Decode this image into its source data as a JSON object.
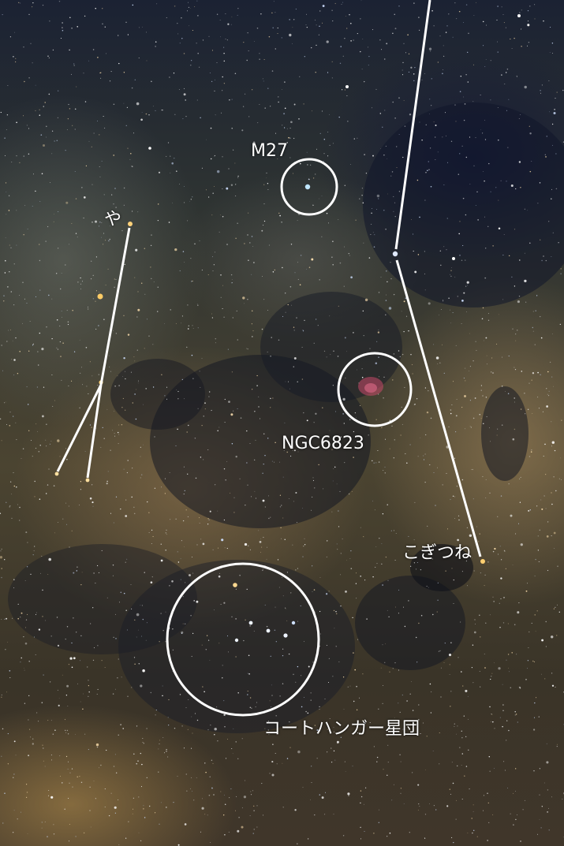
{
  "labels": {
    "m27": "M27",
    "ya": "や",
    "ngc6823": "NGC6823",
    "kogitsune": "こぎつね",
    "coathanger": "コートハンガー星団"
  },
  "colors": {
    "annotation": "#ffffff",
    "nebula": "#c84a6a"
  }
}
